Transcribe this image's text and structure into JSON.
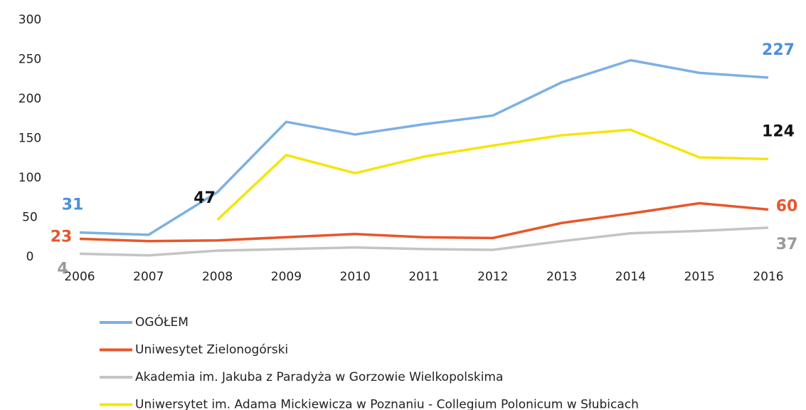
{
  "chart_data": {
    "type": "line",
    "categories": [
      "2006",
      "2007",
      "2008",
      "2009",
      "2010",
      "2011",
      "2012",
      "2013",
      "2014",
      "2015",
      "2016"
    ],
    "series": [
      {
        "name": "OGÓŁEM",
        "color": "#7cb0e4",
        "label_color": "#4a90d9",
        "values": [
          31,
          28,
          82,
          171,
          155,
          168,
          179,
          221,
          249,
          233,
          227
        ]
      },
      {
        "name": "Uniwesytet Zielonogórski",
        "color": "#e8562a",
        "label_color": "#e8562a",
        "values": [
          23,
          20,
          21,
          25,
          29,
          25,
          24,
          43,
          55,
          68,
          60
        ]
      },
      {
        "name": "Akademia im. Jakuba z Paradyża w Gorzowie Wielkopolskima",
        "color": "#c4c4c4",
        "label_color": "#9a9a9a",
        "values": [
          4,
          2,
          8,
          10,
          12,
          10,
          9,
          20,
          30,
          33,
          37
        ]
      },
      {
        "name": "Uniwersytet im. Adama Mickiewicza w Poznaniu - Collegium Polonicum w Słubicach",
        "color": "#f5e50a",
        "label_color": "#111111",
        "values": [
          null,
          null,
          47,
          129,
          106,
          127,
          141,
          154,
          161,
          126,
          124
        ]
      }
    ],
    "ylim": [
      0,
      300
    ],
    "yticks": [
      0,
      50,
      100,
      150,
      200,
      250,
      300
    ],
    "grid": false,
    "legend": "bottom"
  }
}
